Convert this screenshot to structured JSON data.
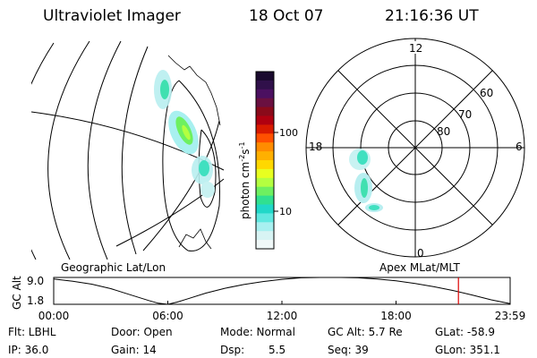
{
  "header": {
    "instrument": "Ultraviolet Imager",
    "date": "18 Oct 07",
    "time": "21:16:36 UT"
  },
  "colorbar": {
    "label": "photon cm",
    "label_sup1": "-2",
    "label_s": "s",
    "label_sup2": "-1",
    "ticks": [
      "100",
      "10"
    ],
    "colors": [
      "#1a0a2e",
      "#30104a",
      "#4b1060",
      "#6a1040",
      "#8a0a1a",
      "#b00010",
      "#d81a00",
      "#ff5000",
      "#ff8c00",
      "#ffb000",
      "#ffd800",
      "#e8ff20",
      "#b4ff40",
      "#6ef060",
      "#30e090",
      "#20d8c8",
      "#60e8e0",
      "#a8f0f0",
      "#d8f4f4",
      "#f0f8f8"
    ]
  },
  "polar_plot": {
    "mlt_labels": [
      "12",
      "18",
      "6",
      "0"
    ],
    "lat_labels": [
      "60",
      "70",
      "80"
    ]
  },
  "map_labels": {
    "left": "Geographic Lat/Lon",
    "right": "Apex MLat/MLT"
  },
  "chart_data": {
    "type": "line",
    "ylabel": "GC Alt",
    "yticks": [
      "9.0",
      "1.8"
    ],
    "ylim": [
      1.8,
      9.0
    ],
    "xlim": [
      0,
      24
    ],
    "xtick_labels": [
      "00:00",
      "06:00",
      "12:00",
      "18:00",
      "23:59"
    ],
    "xticks": [
      0,
      6,
      12,
      18,
      24
    ],
    "series": [
      {
        "x": [
          0,
          1,
          2,
          3,
          4,
          5,
          5.5,
          6,
          6.5,
          7,
          8,
          9,
          10,
          11,
          12,
          13,
          14,
          15,
          16,
          17,
          18,
          19,
          20,
          21,
          22,
          23,
          24
        ],
        "y": [
          8.6,
          8.0,
          7.2,
          6.0,
          4.4,
          2.8,
          2.1,
          1.8,
          2.4,
          3.2,
          4.8,
          6.1,
          7.1,
          7.9,
          8.5,
          8.9,
          9.1,
          9.1,
          8.9,
          8.6,
          8.1,
          7.4,
          6.5,
          5.5,
          4.3,
          3.0,
          2.0
        ]
      }
    ],
    "current_time": 21.28
  },
  "info": {
    "filter": "Flt: LBHL",
    "door": "Door: Open",
    "mode": "Mode: Normal",
    "gc_alt": "GC Alt: 5.7 Re",
    "glat": "GLat: -58.9",
    "ip": "IP: 36.0",
    "gain": "Gain: 14",
    "dsp_label": "Dsp:",
    "dsp_value": "5.5",
    "seq": "Seq: 39",
    "glon": "GLon: 351.1"
  }
}
